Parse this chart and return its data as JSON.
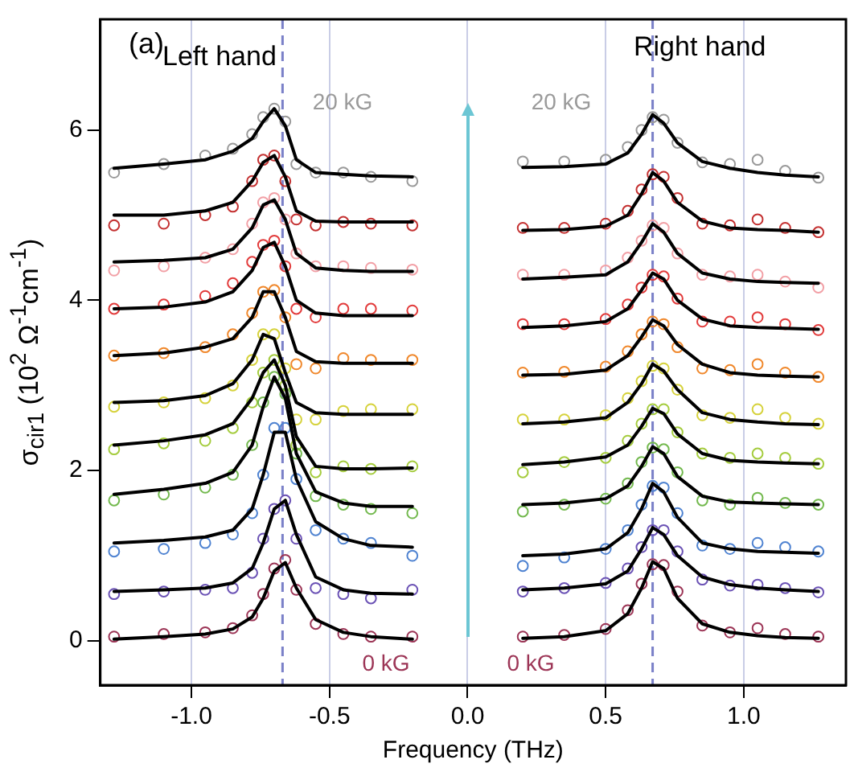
{
  "chart_data": {
    "type": "scatter",
    "xlabel": "Frequency (THz)",
    "ylabel": "σ$_{cir1}$  (10$^{2}$ Ω$^{-1}$cm$^{-1}$)",
    "xlim": [
      -1.33,
      1.37
    ],
    "ylim": [
      -0.52,
      7.3
    ],
    "xticks": [
      {
        "value": -1,
        "label": "-1.0"
      },
      {
        "value": -0.5,
        "label": "-0.5"
      },
      {
        "value": 0,
        "label": "0.0"
      },
      {
        "value": 0.5,
        "label": "0.5"
      },
      {
        "value": 1,
        "label": "1.0"
      }
    ],
    "yticks": [
      0,
      2,
      4,
      6
    ],
    "grid": "x",
    "marker": "circle",
    "ref_lines": [
      {
        "axis": "x",
        "value": -0.67,
        "color": "#7a80c8",
        "line_style": "dashed"
      },
      {
        "axis": "x",
        "value": 0.67,
        "color": "#7a80c8",
        "line_style": "dashed"
      }
    ],
    "annotations": [
      "(a)",
      "Left hand",
      "Right hand",
      "20 kG",
      "20 kG",
      "0 kG",
      "0 kG"
    ],
    "series": [
      {
        "type": "scatter",
        "color": "#9c3556",
        "x": [
          -1.28,
          -1.1,
          -0.95,
          -0.85,
          -0.78,
          -0.74,
          -0.7,
          -0.66,
          -0.62,
          -0.55,
          -0.45,
          -0.35,
          -0.2
        ],
        "values": [
          0.05,
          0.08,
          0.1,
          0.15,
          0.3,
          0.55,
          0.85,
          0.95,
          0.6,
          0.2,
          0.08,
          0.05,
          0.05
        ]
      },
      {
        "type": "line",
        "color": "#000000",
        "marker": "none",
        "x": [
          -1.28,
          -1.1,
          -0.95,
          -0.85,
          -0.78,
          -0.74,
          -0.7,
          -0.66,
          -0.62,
          -0.55,
          -0.45,
          -0.35,
          -0.2
        ],
        "values": [
          0.02,
          0.05,
          0.08,
          0.14,
          0.28,
          0.5,
          0.82,
          0.92,
          0.62,
          0.25,
          0.1,
          0.05,
          0.02
        ]
      },
      {
        "type": "scatter",
        "color": "#6b52b5",
        "x": [
          -1.28,
          -1.1,
          -0.95,
          -0.85,
          -0.78,
          -0.74,
          -0.7,
          -0.66,
          -0.62,
          -0.55,
          -0.45,
          -0.35,
          -0.2
        ],
        "values": [
          0.55,
          0.58,
          0.6,
          0.62,
          0.8,
          1.2,
          1.55,
          1.65,
          1.2,
          0.62,
          0.55,
          0.5,
          0.6
        ]
      },
      {
        "type": "line",
        "color": "#000000",
        "marker": "none",
        "x": [
          -1.28,
          -1.1,
          -0.95,
          -0.85,
          -0.78,
          -0.74,
          -0.7,
          -0.66,
          -0.62,
          -0.55,
          -0.45,
          -0.35,
          -0.2
        ],
        "values": [
          0.58,
          0.6,
          0.62,
          0.68,
          0.85,
          1.15,
          1.55,
          1.65,
          1.25,
          0.75,
          0.6,
          0.56,
          0.55
        ]
      },
      {
        "type": "scatter",
        "color": "#4f83d1",
        "x": [
          -1.28,
          -1.1,
          -0.95,
          -0.85,
          -0.78,
          -0.74,
          -0.7,
          -0.66,
          -0.62,
          -0.55,
          -0.45,
          -0.35,
          -0.2
        ],
        "values": [
          1.05,
          1.08,
          1.15,
          1.25,
          1.5,
          1.95,
          2.5,
          2.5,
          1.9,
          1.3,
          1.2,
          1.15,
          1.0
        ]
      },
      {
        "type": "line",
        "color": "#000000",
        "marker": "none",
        "x": [
          -1.28,
          -1.1,
          -0.95,
          -0.85,
          -0.78,
          -0.74,
          -0.7,
          -0.66,
          -0.62,
          -0.55,
          -0.45,
          -0.35,
          -0.2
        ],
        "values": [
          1.15,
          1.18,
          1.22,
          1.3,
          1.55,
          1.95,
          2.45,
          2.45,
          1.9,
          1.4,
          1.2,
          1.12,
          1.1
        ]
      },
      {
        "type": "scatter",
        "color": "#73b94e",
        "x": [
          -1.28,
          -1.1,
          -0.95,
          -0.85,
          -0.78,
          -0.74,
          -0.7,
          -0.66,
          -0.62,
          -0.55,
          -0.45,
          -0.35,
          -0.2
        ],
        "values": [
          1.65,
          1.72,
          1.8,
          1.95,
          2.3,
          2.8,
          3.1,
          2.9,
          2.2,
          1.7,
          1.6,
          1.55,
          1.5
        ]
      },
      {
        "type": "line",
        "color": "#000000",
        "marker": "none",
        "x": [
          -1.28,
          -1.1,
          -0.95,
          -0.85,
          -0.78,
          -0.74,
          -0.7,
          -0.66,
          -0.62,
          -0.55,
          -0.45,
          -0.35,
          -0.2
        ],
        "values": [
          1.72,
          1.78,
          1.85,
          1.98,
          2.3,
          2.75,
          3.1,
          2.85,
          2.2,
          1.75,
          1.62,
          1.58,
          1.58
        ]
      },
      {
        "type": "scatter",
        "color": "#a5cc3e",
        "x": [
          -1.28,
          -1.1,
          -0.95,
          -0.85,
          -0.78,
          -0.74,
          -0.7,
          -0.66,
          -0.62,
          -0.55,
          -0.45,
          -0.35,
          -0.2
        ],
        "values": [
          2.25,
          2.32,
          2.35,
          2.5,
          2.8,
          3.15,
          3.3,
          3.0,
          2.3,
          1.98,
          2.05,
          2.02,
          2.05
        ]
      },
      {
        "type": "line",
        "color": "#000000",
        "marker": "none",
        "x": [
          -1.28,
          -1.1,
          -0.95,
          -0.85,
          -0.78,
          -0.74,
          -0.7,
          -0.66,
          -0.62,
          -0.55,
          -0.45,
          -0.35,
          -0.2
        ],
        "values": [
          2.3,
          2.35,
          2.42,
          2.55,
          2.85,
          3.15,
          3.3,
          3.0,
          2.4,
          2.05,
          2.02,
          2.02,
          2.03
        ]
      },
      {
        "type": "scatter",
        "color": "#d6d23c",
        "x": [
          -1.28,
          -1.1,
          -0.95,
          -0.85,
          -0.78,
          -0.74,
          -0.7,
          -0.66,
          -0.62,
          -0.55,
          -0.45,
          -0.35,
          -0.2
        ],
        "values": [
          2.75,
          2.8,
          2.85,
          3.0,
          3.3,
          3.6,
          3.6,
          3.2,
          2.6,
          2.6,
          2.7,
          2.72,
          2.72
        ]
      },
      {
        "type": "line",
        "color": "#000000",
        "marker": "none",
        "x": [
          -1.28,
          -1.1,
          -0.95,
          -0.85,
          -0.78,
          -0.74,
          -0.7,
          -0.66,
          -0.62,
          -0.55,
          -0.45,
          -0.35,
          -0.2
        ],
        "values": [
          2.8,
          2.82,
          2.88,
          3.02,
          3.3,
          3.6,
          3.55,
          3.15,
          2.8,
          2.68,
          2.66,
          2.66,
          2.66
        ]
      },
      {
        "type": "scatter",
        "color": "#f0882c",
        "x": [
          -1.28,
          -1.1,
          -0.95,
          -0.85,
          -0.78,
          -0.74,
          -0.7,
          -0.66,
          -0.62,
          -0.55,
          -0.45,
          -0.35,
          -0.2
        ],
        "values": [
          3.35,
          3.38,
          3.45,
          3.6,
          3.85,
          4.1,
          4.12,
          3.8,
          3.25,
          3.2,
          3.32,
          3.3,
          3.3
        ]
      },
      {
        "type": "line",
        "color": "#000000",
        "marker": "none",
        "x": [
          -1.28,
          -1.1,
          -0.95,
          -0.85,
          -0.78,
          -0.74,
          -0.7,
          -0.66,
          -0.62,
          -0.55,
          -0.45,
          -0.35,
          -0.2
        ],
        "values": [
          3.35,
          3.38,
          3.45,
          3.55,
          3.8,
          4.1,
          4.1,
          3.8,
          3.4,
          3.28,
          3.26,
          3.26,
          3.26
        ]
      },
      {
        "type": "scatter",
        "color": "#e23b3b",
        "x": [
          -1.28,
          -1.1,
          -0.95,
          -0.85,
          -0.78,
          -0.74,
          -0.7,
          -0.66,
          -0.62,
          -0.55,
          -0.45,
          -0.35,
          -0.2
        ],
        "values": [
          3.9,
          3.95,
          4.05,
          4.2,
          4.45,
          4.65,
          4.7,
          4.4,
          3.9,
          3.8,
          3.9,
          3.9,
          3.88
        ]
      },
      {
        "type": "line",
        "color": "#000000",
        "marker": "none",
        "x": [
          -1.28,
          -1.1,
          -0.95,
          -0.85,
          -0.78,
          -0.74,
          -0.7,
          -0.66,
          -0.62,
          -0.55,
          -0.45,
          -0.35,
          -0.2
        ],
        "values": [
          3.9,
          3.92,
          3.98,
          4.1,
          4.35,
          4.62,
          4.68,
          4.4,
          4.0,
          3.85,
          3.82,
          3.82,
          3.82
        ]
      },
      {
        "type": "scatter",
        "color": "#f2a0a6",
        "x": [
          -1.28,
          -1.1,
          -0.95,
          -0.85,
          -0.78,
          -0.74,
          -0.7,
          -0.66,
          -0.62,
          -0.55,
          -0.45,
          -0.35,
          -0.2
        ],
        "values": [
          4.35,
          4.4,
          4.5,
          4.6,
          4.9,
          5.15,
          5.2,
          4.95,
          4.55,
          4.4,
          4.4,
          4.38,
          4.36
        ]
      },
      {
        "type": "line",
        "color": "#000000",
        "marker": "none",
        "x": [
          -1.28,
          -1.1,
          -0.95,
          -0.85,
          -0.78,
          -0.74,
          -0.7,
          -0.66,
          -0.62,
          -0.55,
          -0.45,
          -0.35,
          -0.2
        ],
        "values": [
          4.45,
          4.47,
          4.5,
          4.6,
          4.85,
          5.12,
          5.18,
          4.95,
          4.55,
          4.38,
          4.35,
          4.34,
          4.34
        ]
      },
      {
        "type": "scatter",
        "color": "#c43131",
        "x": [
          -1.28,
          -1.1,
          -0.95,
          -0.85,
          -0.78,
          -0.74,
          -0.7,
          -0.66,
          -0.62,
          -0.55,
          -0.45,
          -0.35,
          -0.2
        ],
        "values": [
          4.88,
          4.9,
          5.0,
          5.1,
          5.4,
          5.65,
          5.7,
          5.4,
          4.95,
          4.88,
          4.92,
          4.9,
          4.88
        ]
      },
      {
        "type": "line",
        "color": "#000000",
        "marker": "none",
        "x": [
          -1.28,
          -1.1,
          -0.95,
          -0.85,
          -0.78,
          -0.74,
          -0.7,
          -0.66,
          -0.62,
          -0.55,
          -0.45,
          -0.35,
          -0.2
        ],
        "values": [
          5.0,
          5.0,
          5.05,
          5.15,
          5.4,
          5.62,
          5.7,
          5.45,
          5.05,
          4.93,
          4.92,
          4.92,
          4.92
        ]
      },
      {
        "type": "scatter",
        "color": "#9a9a9a",
        "x": [
          -1.28,
          -1.1,
          -0.95,
          -0.85,
          -0.78,
          -0.74,
          -0.7,
          -0.66,
          -0.62,
          -0.55,
          -0.45,
          -0.35,
          -0.2
        ],
        "values": [
          5.5,
          5.6,
          5.7,
          5.78,
          5.95,
          6.15,
          6.25,
          6.1,
          5.6,
          5.5,
          5.5,
          5.45,
          5.4
        ]
      },
      {
        "type": "line",
        "color": "#000000",
        "marker": "none",
        "x": [
          -1.28,
          -1.1,
          -0.95,
          -0.85,
          -0.78,
          -0.74,
          -0.7,
          -0.66,
          -0.62,
          -0.55,
          -0.45,
          -0.35,
          -0.2
        ],
        "values": [
          5.55,
          5.6,
          5.65,
          5.75,
          5.9,
          6.1,
          6.25,
          6.05,
          5.65,
          5.5,
          5.48,
          5.46,
          5.45
        ]
      },
      {
        "type": "scatter",
        "color": "#9c3556",
        "x": [
          0.2,
          0.35,
          0.5,
          0.58,
          0.63,
          0.67,
          0.71,
          0.76,
          0.85,
          0.95,
          1.05,
          1.15,
          1.27
        ],
        "values": [
          0.05,
          0.07,
          0.14,
          0.36,
          0.67,
          0.9,
          0.89,
          0.58,
          0.18,
          0.1,
          0.15,
          0.08,
          0.05
        ]
      },
      {
        "type": "line",
        "color": "#000000",
        "marker": "none",
        "x": [
          0.2,
          0.35,
          0.5,
          0.58,
          0.63,
          0.67,
          0.71,
          0.76,
          0.85,
          0.95,
          1.05,
          1.15,
          1.27
        ],
        "values": [
          0.03,
          0.05,
          0.12,
          0.32,
          0.62,
          0.93,
          0.85,
          0.5,
          0.2,
          0.1,
          0.06,
          0.04,
          0.03
        ]
      },
      {
        "type": "scatter",
        "color": "#6b52b5",
        "x": [
          0.2,
          0.35,
          0.5,
          0.58,
          0.63,
          0.67,
          0.71,
          0.76,
          0.85,
          0.95,
          1.05,
          1.15,
          1.27
        ],
        "values": [
          0.58,
          0.62,
          0.68,
          0.85,
          1.1,
          1.3,
          1.3,
          1.05,
          0.72,
          0.65,
          0.66,
          0.62,
          0.57
        ]
      },
      {
        "type": "line",
        "color": "#000000",
        "marker": "none",
        "x": [
          0.2,
          0.35,
          0.5,
          0.58,
          0.63,
          0.67,
          0.71,
          0.76,
          0.85,
          0.95,
          1.05,
          1.15,
          1.27
        ],
        "values": [
          0.6,
          0.62,
          0.67,
          0.82,
          1.08,
          1.33,
          1.25,
          1.0,
          0.75,
          0.66,
          0.62,
          0.6,
          0.58
        ]
      },
      {
        "type": "scatter",
        "color": "#4f83d1",
        "x": [
          0.2,
          0.35,
          0.5,
          0.58,
          0.63,
          0.67,
          0.71,
          0.76,
          0.85,
          0.95,
          1.05,
          1.15,
          1.27
        ],
        "values": [
          0.88,
          0.98,
          1.08,
          1.3,
          1.6,
          1.82,
          1.8,
          1.5,
          1.12,
          1.08,
          1.15,
          1.1,
          1.05
        ]
      },
      {
        "type": "line",
        "color": "#000000",
        "marker": "none",
        "x": [
          0.2,
          0.35,
          0.5,
          0.58,
          0.63,
          0.67,
          0.71,
          0.76,
          0.85,
          0.95,
          1.05,
          1.15,
          1.27
        ],
        "values": [
          1.0,
          1.02,
          1.08,
          1.27,
          1.55,
          1.85,
          1.75,
          1.45,
          1.15,
          1.08,
          1.05,
          1.04,
          1.03
        ]
      },
      {
        "type": "scatter",
        "color": "#73b94e",
        "x": [
          0.2,
          0.35,
          0.5,
          0.58,
          0.63,
          0.67,
          0.71,
          0.76,
          0.85,
          0.95,
          1.05,
          1.15,
          1.27
        ],
        "values": [
          1.52,
          1.6,
          1.67,
          1.85,
          2.1,
          2.27,
          2.25,
          1.98,
          1.65,
          1.6,
          1.68,
          1.62,
          1.6
        ]
      },
      {
        "type": "line",
        "color": "#000000",
        "marker": "none",
        "x": [
          0.2,
          0.35,
          0.5,
          0.58,
          0.63,
          0.67,
          0.71,
          0.76,
          0.85,
          0.95,
          1.05,
          1.15,
          1.27
        ],
        "values": [
          1.6,
          1.62,
          1.67,
          1.82,
          2.05,
          2.28,
          2.2,
          1.93,
          1.7,
          1.63,
          1.62,
          1.61,
          1.6
        ]
      },
      {
        "type": "scatter",
        "color": "#a5cc3e",
        "x": [
          0.2,
          0.35,
          0.5,
          0.58,
          0.63,
          0.67,
          0.71,
          0.76,
          0.85,
          0.95,
          1.05,
          1.15,
          1.27
        ],
        "values": [
          1.98,
          2.1,
          2.15,
          2.35,
          2.55,
          2.72,
          2.72,
          2.45,
          2.2,
          2.15,
          2.2,
          2.15,
          2.08
        ]
      },
      {
        "type": "line",
        "color": "#000000",
        "marker": "none",
        "x": [
          0.2,
          0.35,
          0.5,
          0.58,
          0.63,
          0.67,
          0.71,
          0.76,
          0.85,
          0.95,
          1.05,
          1.15,
          1.27
        ],
        "values": [
          2.07,
          2.1,
          2.16,
          2.3,
          2.52,
          2.73,
          2.67,
          2.43,
          2.2,
          2.12,
          2.1,
          2.09,
          2.08
        ]
      },
      {
        "type": "scatter",
        "color": "#d6d23c",
        "x": [
          0.2,
          0.35,
          0.5,
          0.58,
          0.63,
          0.67,
          0.71,
          0.76,
          0.85,
          0.95,
          1.05,
          1.15,
          1.27
        ],
        "values": [
          2.6,
          2.6,
          2.65,
          2.85,
          3.05,
          3.23,
          3.2,
          2.95,
          2.65,
          2.62,
          2.72,
          2.62,
          2.55
        ]
      },
      {
        "type": "line",
        "color": "#000000",
        "marker": "none",
        "x": [
          0.2,
          0.35,
          0.5,
          0.58,
          0.63,
          0.67,
          0.71,
          0.76,
          0.85,
          0.95,
          1.05,
          1.15,
          1.27
        ],
        "values": [
          2.55,
          2.57,
          2.62,
          2.8,
          3.02,
          3.25,
          3.17,
          2.95,
          2.68,
          2.6,
          2.57,
          2.55,
          2.54
        ]
      },
      {
        "type": "scatter",
        "color": "#f0882c",
        "x": [
          0.2,
          0.35,
          0.5,
          0.58,
          0.63,
          0.67,
          0.71,
          0.76,
          0.85,
          0.95,
          1.05,
          1.15,
          1.27
        ],
        "values": [
          3.15,
          3.16,
          3.22,
          3.4,
          3.6,
          3.75,
          3.72,
          3.45,
          3.2,
          3.18,
          3.25,
          3.15,
          3.1
        ]
      },
      {
        "type": "line",
        "color": "#000000",
        "marker": "none",
        "x": [
          0.2,
          0.35,
          0.5,
          0.58,
          0.63,
          0.67,
          0.71,
          0.76,
          0.85,
          0.95,
          1.05,
          1.15,
          1.27
        ],
        "values": [
          3.12,
          3.13,
          3.18,
          3.35,
          3.57,
          3.77,
          3.7,
          3.48,
          3.25,
          3.15,
          3.12,
          3.11,
          3.1
        ]
      },
      {
        "type": "scatter",
        "color": "#e23b3b",
        "x": [
          0.2,
          0.35,
          0.5,
          0.58,
          0.63,
          0.67,
          0.71,
          0.76,
          0.85,
          0.95,
          1.05,
          1.15,
          1.27
        ],
        "values": [
          3.72,
          3.72,
          3.78,
          3.95,
          4.15,
          4.3,
          4.28,
          4.02,
          3.75,
          3.75,
          3.8,
          3.72,
          3.65
        ]
      },
      {
        "type": "line",
        "color": "#000000",
        "marker": "none",
        "x": [
          0.2,
          0.35,
          0.5,
          0.58,
          0.63,
          0.67,
          0.71,
          0.76,
          0.85,
          0.95,
          1.05,
          1.15,
          1.27
        ],
        "values": [
          3.68,
          3.7,
          3.75,
          3.9,
          4.12,
          4.32,
          4.25,
          4.0,
          3.78,
          3.7,
          3.68,
          3.67,
          3.66
        ]
      },
      {
        "type": "scatter",
        "color": "#f2a0a6",
        "x": [
          0.2,
          0.35,
          0.5,
          0.58,
          0.63,
          0.67,
          0.71,
          0.76,
          0.85,
          0.95,
          1.05,
          1.15,
          1.27
        ],
        "values": [
          4.3,
          4.3,
          4.35,
          4.5,
          4.7,
          4.88,
          4.85,
          4.55,
          4.3,
          4.28,
          4.3,
          4.22,
          4.15
        ]
      },
      {
        "type": "line",
        "color": "#000000",
        "marker": "none",
        "x": [
          0.2,
          0.35,
          0.5,
          0.58,
          0.63,
          0.67,
          0.71,
          0.76,
          0.85,
          0.95,
          1.05,
          1.15,
          1.27
        ],
        "values": [
          4.25,
          4.27,
          4.3,
          4.45,
          4.68,
          4.9,
          4.8,
          4.55,
          4.32,
          4.25,
          4.22,
          4.21,
          4.2
        ]
      },
      {
        "type": "scatter",
        "color": "#c43131",
        "x": [
          0.2,
          0.35,
          0.5,
          0.58,
          0.63,
          0.67,
          0.71,
          0.76,
          0.85,
          0.95,
          1.05,
          1.15,
          1.27
        ],
        "values": [
          4.85,
          4.85,
          4.9,
          5.05,
          5.3,
          5.48,
          5.45,
          5.2,
          4.9,
          4.88,
          4.95,
          4.85,
          4.8
        ]
      },
      {
        "type": "line",
        "color": "#000000",
        "marker": "none",
        "x": [
          0.2,
          0.35,
          0.5,
          0.58,
          0.63,
          0.67,
          0.71,
          0.76,
          0.85,
          0.95,
          1.05,
          1.15,
          1.27
        ],
        "values": [
          4.82,
          4.83,
          4.87,
          5.0,
          5.25,
          5.5,
          5.4,
          5.15,
          4.93,
          4.85,
          4.83,
          4.82,
          4.8
        ]
      },
      {
        "type": "scatter",
        "color": "#9a9a9a",
        "x": [
          0.2,
          0.35,
          0.5,
          0.58,
          0.63,
          0.67,
          0.71,
          0.76,
          0.85,
          0.95,
          1.05,
          1.15,
          1.27
        ],
        "values": [
          5.63,
          5.63,
          5.65,
          5.8,
          6.0,
          6.15,
          6.12,
          5.85,
          5.62,
          5.6,
          5.65,
          5.52,
          5.44
        ]
      },
      {
        "type": "line",
        "color": "#000000",
        "marker": "none",
        "x": [
          0.2,
          0.35,
          0.5,
          0.58,
          0.63,
          0.67,
          0.71,
          0.76,
          0.85,
          0.95,
          1.05,
          1.15,
          1.27
        ],
        "values": [
          5.56,
          5.57,
          5.6,
          5.73,
          5.95,
          6.18,
          6.08,
          5.85,
          5.63,
          5.55,
          5.5,
          5.47,
          5.45
        ]
      }
    ]
  }
}
